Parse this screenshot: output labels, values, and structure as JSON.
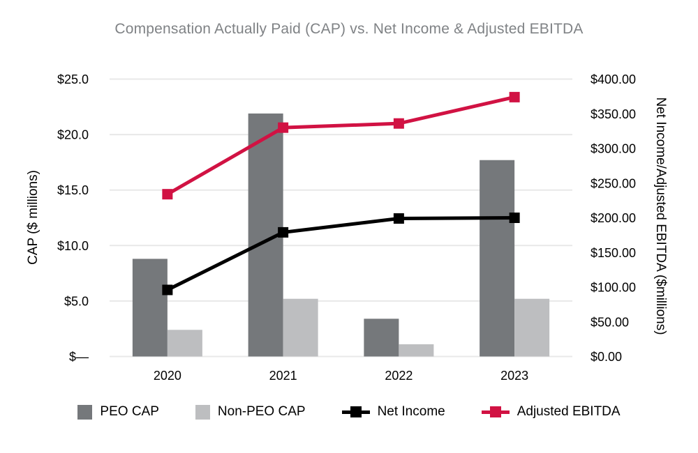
{
  "title": "Compensation Actually Paid (CAP) vs. Net Income & Adjusted EBITDA",
  "colors": {
    "peo_bar": "#75787B",
    "non_peo_bar": "#BDBEC0",
    "net_income_line": "#000000",
    "adjusted_ebitda_line": "#D11243",
    "gridline": "#E8E8E8",
    "title_text": "#7F8285",
    "axis_text": "#000000"
  },
  "chart_data": {
    "type": "bar+line combo",
    "title": "Compensation Actually Paid (CAP) vs. Net Income & Adjusted EBITDA",
    "categories": [
      "2020",
      "2021",
      "2022",
      "2023"
    ],
    "bar_series": [
      {
        "name": "PEO CAP",
        "axis": "left",
        "color": "#75787B",
        "values": [
          8.8,
          21.9,
          3.4,
          17.7
        ]
      },
      {
        "name": "Non-PEO CAP",
        "axis": "left",
        "color": "#BDBEC0",
        "values": [
          2.4,
          5.2,
          1.1,
          5.2
        ]
      }
    ],
    "line_series": [
      {
        "name": "Net Income",
        "axis": "right",
        "color": "#000000",
        "marker": "square",
        "values": [
          96,
          179,
          199,
          200
        ]
      },
      {
        "name": "Adjusted EBITDA",
        "axis": "right",
        "color": "#D11243",
        "marker": "square",
        "values": [
          234,
          330,
          336,
          374
        ]
      }
    ],
    "left_axis": {
      "label": "CAP ($ millions)",
      "min": 0,
      "max": 25,
      "ticks": [
        "$—",
        "$5.0",
        "$10.0",
        "$15.0",
        "$20.0",
        "$25.0"
      ]
    },
    "right_axis": {
      "label": "Net Income/Adjusted EBITDA ($millions)",
      "min": 0,
      "max": 400,
      "ticks": [
        "$0.00",
        "$50.00",
        "$100.00",
        "$150.00",
        "$200.00",
        "$250.00",
        "$300.00",
        "$350.00",
        "$400.00"
      ]
    },
    "grid": true,
    "legend_position": "bottom"
  }
}
